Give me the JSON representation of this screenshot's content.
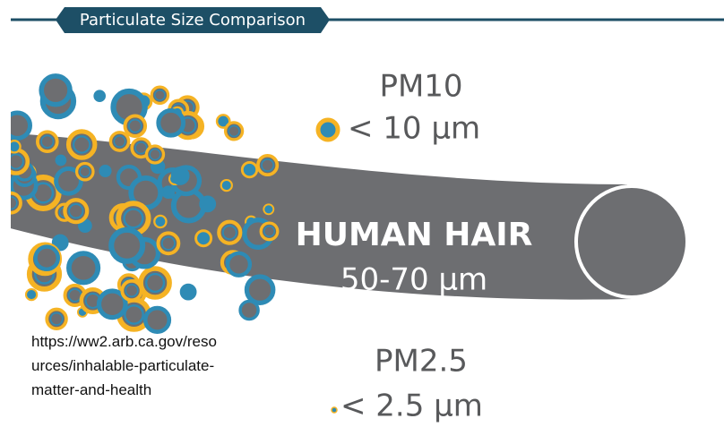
{
  "header": {
    "title": "Particulate Size Comparison"
  },
  "pm10": {
    "label": "PM10",
    "size": "< 10 μm"
  },
  "hair": {
    "label": "HUMAN HAIR",
    "size": "50-70 μm"
  },
  "pm25": {
    "label": "PM2.5",
    "size": "< 2.5 μm"
  },
  "source_lines": [
    "https://ww2.arb.ca.gov/reso",
    "urces/inhalable-particulate-",
    "matter-and-health"
  ]
}
